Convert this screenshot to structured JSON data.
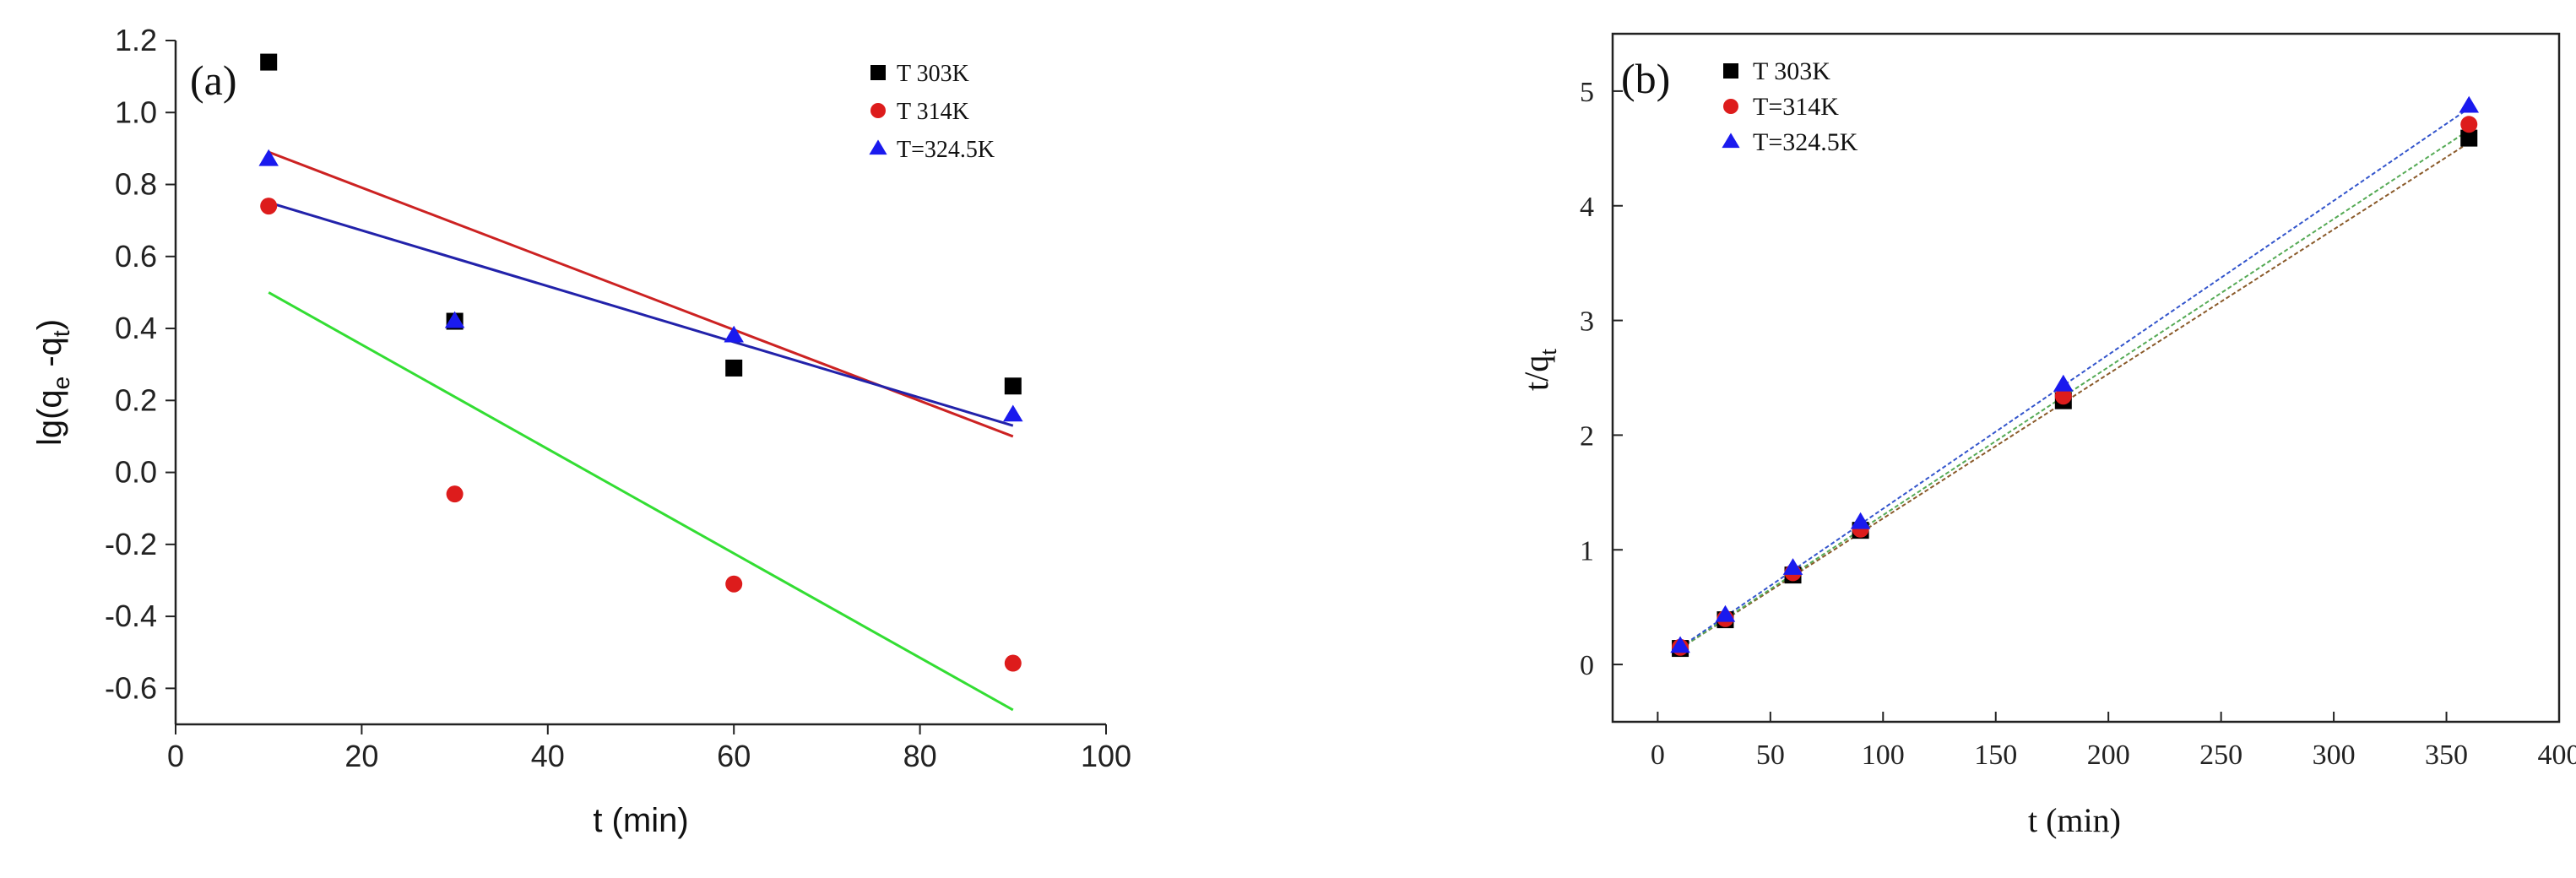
{
  "chart_data": [
    {
      "type": "scatter",
      "panel_label": "(a)",
      "xlabel": "t (min)",
      "ylabel": {
        "base": "lg(q",
        "sub1": "e",
        "mid": " -q",
        "sub2": "t",
        "end": ")"
      },
      "xlim": [
        0,
        100
      ],
      "ylim": [
        -0.7,
        1.2
      ],
      "xticks": [
        0,
        20,
        40,
        60,
        80,
        100
      ],
      "xtick_labels": [
        "0",
        "20",
        "40",
        "60",
        "80",
        "100"
      ],
      "yticks": [
        -0.6,
        -0.4,
        -0.2,
        0.0,
        0.2,
        0.4,
        0.6,
        0.8,
        1.0,
        1.2
      ],
      "ytick_labels": [
        "-0.6",
        "-0.4",
        "-0.2",
        "0.0",
        "0.2",
        "0.4",
        "0.6",
        "0.8",
        "1.0",
        "1.2"
      ],
      "legend_position": "top-right",
      "series": [
        {
          "name": "T=303K",
          "legend_label": "T  303K",
          "marker": "square",
          "color": "#000000",
          "x": [
            10,
            30,
            60,
            90
          ],
          "y": [
            1.14,
            0.42,
            0.29,
            0.24
          ],
          "fit": {
            "x": [
              10,
              90
            ],
            "y": [
              0.89,
              0.1
            ],
            "color": "#cc2222"
          }
        },
        {
          "name": "T=314K",
          "legend_label": "T  314K",
          "marker": "circle",
          "color": "#dd1c1c",
          "x": [
            10,
            30,
            60,
            90
          ],
          "y": [
            0.74,
            -0.06,
            -0.31,
            -0.53
          ],
          "fit": {
            "x": [
              10,
              90
            ],
            "y": [
              0.5,
              -0.66
            ],
            "color": "#33dd33"
          }
        },
        {
          "name": "T=324.5K",
          "legend_label": "T=324.5K",
          "marker": "triangle",
          "color": "#1a1aee",
          "x": [
            10,
            30,
            60,
            90
          ],
          "y": [
            0.87,
            0.42,
            0.38,
            0.16
          ],
          "fit": {
            "x": [
              10,
              90
            ],
            "y": [
              0.75,
              0.13
            ],
            "color": "#2222aa"
          }
        }
      ]
    },
    {
      "type": "scatter",
      "panel_label": "(b)",
      "xlabel": "t (min)",
      "ylabel": {
        "base": "t/q",
        "sub1": "t",
        "mid": "",
        "sub2": "",
        "end": ""
      },
      "xlim": [
        -20,
        400
      ],
      "ylim": [
        -0.5,
        5.5
      ],
      "xticks": [
        0,
        50,
        100,
        150,
        200,
        250,
        300,
        350,
        400
      ],
      "xtick_labels": [
        "0",
        "50",
        "100",
        "150",
        "200",
        "250",
        "300",
        "350",
        "400"
      ],
      "yticks": [
        0,
        1,
        2,
        3,
        4,
        5
      ],
      "ytick_labels": [
        "0",
        "1",
        "2",
        "3",
        "4",
        "5"
      ],
      "legend_position": "top-left",
      "series": [
        {
          "name": "T=303K",
          "legend_label": "T  303K",
          "marker": "square",
          "color": "#000000",
          "x": [
            10,
            30,
            60,
            90,
            180,
            360
          ],
          "y": [
            0.14,
            0.39,
            0.78,
            1.17,
            2.3,
            4.59
          ],
          "fit": {
            "x": [
              10,
              360
            ],
            "y": [
              0.14,
              4.55
            ],
            "color": "#8a5a2a"
          }
        },
        {
          "name": "T=314K",
          "legend_label": "T=314K",
          "marker": "circle",
          "color": "#dd1c1c",
          "x": [
            10,
            30,
            60,
            90,
            180,
            360
          ],
          "y": [
            0.15,
            0.4,
            0.8,
            1.18,
            2.34,
            4.71
          ],
          "fit": {
            "x": [
              10,
              360
            ],
            "y": [
              0.14,
              4.66
            ],
            "color": "#55aa55"
          }
        },
        {
          "name": "T=324.5K",
          "legend_label": "T=324.5K",
          "marker": "triangle",
          "color": "#1a1aee",
          "x": [
            10,
            30,
            60,
            90,
            180,
            360
          ],
          "y": [
            0.16,
            0.43,
            0.84,
            1.24,
            2.44,
            4.87
          ],
          "fit": {
            "x": [
              10,
              360
            ],
            "y": [
              0.15,
              4.85
            ],
            "color": "#3355cc"
          }
        }
      ]
    }
  ]
}
